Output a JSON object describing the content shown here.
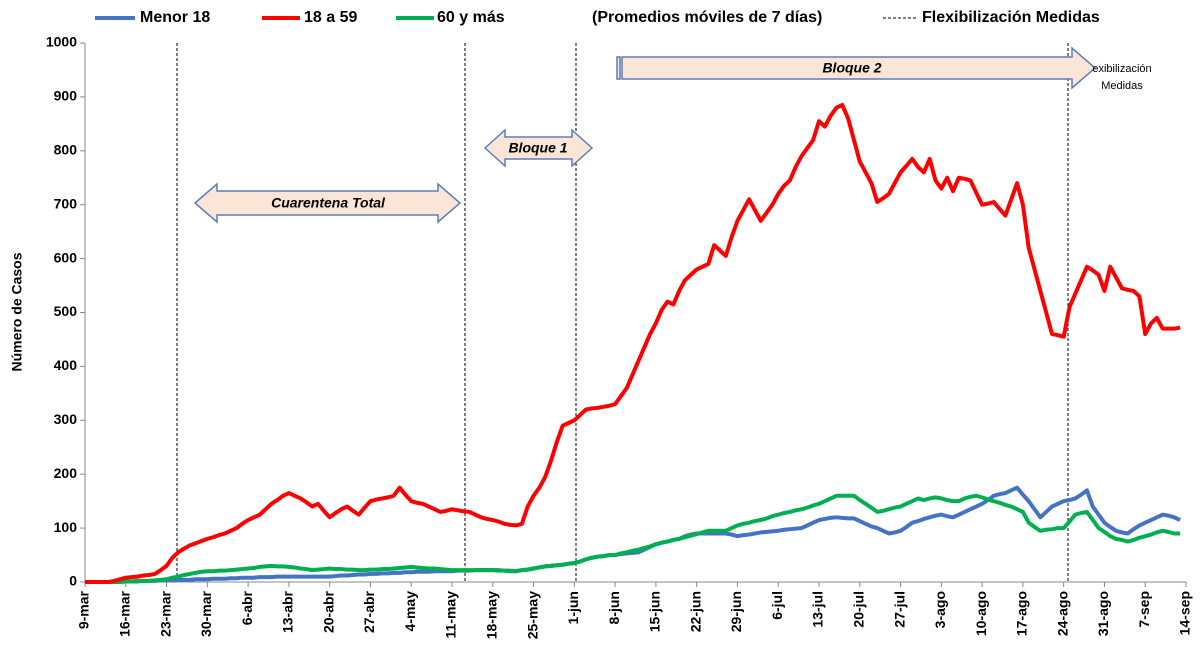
{
  "chart_data": {
    "type": "line",
    "subtitle": "(Promedios móviles de 7 días)",
    "y_label": "Número de Casos",
    "event_legend": "Flexibilización Medidas",
    "annotations": [
      "Cuarentena Total",
      "Bloque 1",
      "Bloque 2",
      "exibilización",
      "Medidas"
    ],
    "ylim": [
      0,
      1000
    ],
    "yticks": [
      0,
      100,
      200,
      300,
      400,
      500,
      600,
      700,
      800,
      900,
      1000
    ],
    "categories": [
      "9-mar",
      null,
      null,
      null,
      null,
      null,
      null,
      "16-mar",
      null,
      null,
      null,
      null,
      null,
      null,
      "23-mar",
      null,
      null,
      null,
      null,
      null,
      null,
      "30-mar",
      null,
      null,
      null,
      null,
      null,
      null,
      "6-abr",
      null,
      null,
      null,
      null,
      null,
      null,
      "13-abr",
      null,
      null,
      null,
      null,
      null,
      null,
      "20-abr",
      null,
      null,
      null,
      null,
      null,
      null,
      "27-abr",
      null,
      null,
      null,
      null,
      null,
      null,
      "4-may",
      null,
      null,
      null,
      null,
      null,
      null,
      "11-may",
      null,
      null,
      null,
      null,
      null,
      null,
      "18-may",
      null,
      null,
      null,
      null,
      null,
      null,
      "25-may",
      null,
      null,
      null,
      null,
      null,
      null,
      "1-jun",
      null,
      null,
      null,
      null,
      null,
      null,
      "8-jun",
      null,
      null,
      null,
      null,
      null,
      null,
      "15-jun",
      null,
      null,
      null,
      null,
      null,
      null,
      "22-jun",
      null,
      null,
      null,
      null,
      null,
      null,
      "29-jun",
      null,
      null,
      null,
      null,
      null,
      null,
      "6-jul",
      null,
      null,
      null,
      null,
      null,
      null,
      "13-jul",
      null,
      null,
      null,
      null,
      null,
      null,
      "20-jul",
      null,
      null,
      null,
      null,
      null,
      null,
      "27-jul",
      null,
      null,
      null,
      null,
      null,
      null,
      "3-ago",
      null,
      null,
      null,
      null,
      null,
      null,
      "10-ago",
      null,
      null,
      null,
      null,
      null,
      null,
      "17-ago",
      null,
      null,
      null,
      null,
      null,
      null,
      "24-ago",
      null,
      null,
      null,
      null,
      null,
      null,
      "31-ago",
      null,
      null,
      null,
      null,
      null,
      null,
      "7-sep",
      null,
      null,
      null,
      null,
      null,
      null,
      "14-sep"
    ],
    "series": [
      {
        "name": "Menor 18",
        "color": "#4472c4",
        "values": [
          0,
          0,
          0,
          0,
          0,
          0,
          1,
          1,
          1,
          2,
          2,
          2,
          2,
          3,
          3,
          3,
          4,
          4,
          4,
          5,
          5,
          5,
          6,
          6,
          6,
          7,
          7,
          8,
          8,
          8,
          9,
          9,
          9,
          10,
          10,
          10,
          10,
          10,
          10,
          10,
          10,
          10,
          10,
          11,
          12,
          12,
          13,
          14,
          14,
          15,
          15,
          16,
          16,
          17,
          17,
          18,
          18,
          19,
          19,
          19,
          20,
          20,
          20,
          20,
          21,
          21,
          21,
          22,
          22,
          22,
          22,
          22,
          21,
          21,
          20,
          22,
          23,
          25,
          27,
          29,
          30,
          31,
          32,
          34,
          35,
          38,
          42,
          45,
          47,
          48,
          50,
          50,
          52,
          53,
          54,
          55,
          60,
          65,
          70,
          73,
          75,
          78,
          80,
          85,
          88,
          90,
          90,
          90,
          90,
          90,
          90,
          88,
          85,
          87,
          88,
          90,
          92,
          93,
          94,
          95,
          97,
          98,
          99,
          100,
          105,
          110,
          115,
          117,
          119,
          120,
          119,
          118,
          118,
          113,
          108,
          103,
          100,
          95,
          90,
          92,
          95,
          102,
          110,
          113,
          117,
          120,
          123,
          125,
          122,
          120,
          125,
          130,
          135,
          140,
          145,
          152,
          160,
          163,
          165,
          170,
          175,
          162,
          150,
          135,
          120,
          130,
          140,
          145,
          150,
          152,
          155,
          162,
          170,
          140,
          125,
          110,
          102,
          95,
          92,
          90,
          98,
          105,
          110,
          115,
          120,
          125,
          123,
          120,
          115,
          null
        ]
      },
      {
        "name": "18 a 59",
        "color": "#ff0000",
        "values": [
          0,
          0,
          0,
          0,
          0,
          2,
          5,
          8,
          9,
          10,
          12,
          13,
          15,
          22,
          30,
          45,
          55,
          62,
          68,
          72,
          76,
          80,
          83,
          87,
          90,
          95,
          100,
          108,
          115,
          120,
          125,
          135,
          145,
          152,
          160,
          165,
          160,
          155,
          148,
          140,
          145,
          132,
          120,
          128,
          135,
          140,
          132,
          125,
          138,
          150,
          153,
          155,
          157,
          160,
          175,
          162,
          150,
          147,
          145,
          140,
          135,
          130,
          132,
          135,
          133,
          131,
          130,
          125,
          120,
          117,
          115,
          112,
          108,
          106,
          105,
          108,
          140,
          160,
          175,
          195,
          225,
          260,
          290,
          295,
          300,
          310,
          320,
          322,
          323,
          325,
          327,
          330,
          345,
          360,
          385,
          410,
          435,
          460,
          480,
          505,
          520,
          515,
          540,
          560,
          570,
          580,
          585,
          590,
          625,
          615,
          605,
          640,
          670,
          690,
          710,
          690,
          670,
          685,
          700,
          720,
          735,
          745,
          770,
          790,
          805,
          820,
          855,
          845,
          865,
          880,
          885,
          860,
          820,
          780,
          760,
          740,
          705,
          712,
          720,
          740,
          760,
          772,
          785,
          770,
          760,
          785,
          745,
          730,
          750,
          725,
          750,
          748,
          745,
          722,
          700,
          702,
          705,
          692,
          680,
          710,
          740,
          700,
          620,
          580,
          540,
          500,
          460,
          458,
          455,
          510,
          535,
          560,
          585,
          578,
          570,
          540,
          585,
          565,
          545,
          542,
          540,
          530,
          460,
          480,
          490,
          470,
          470,
          470,
          472,
          null
        ]
      },
      {
        "name": "60 y más",
        "color": "#00b050",
        "values": [
          0,
          0,
          0,
          0,
          0,
          0,
          0,
          1,
          1,
          1,
          2,
          2,
          3,
          4,
          5,
          8,
          10,
          13,
          15,
          17,
          19,
          20,
          20,
          21,
          21,
          22,
          23,
          24,
          25,
          26,
          28,
          29,
          30,
          29,
          29,
          28,
          27,
          25,
          24,
          22,
          23,
          24,
          25,
          24,
          24,
          23,
          23,
          22,
          22,
          23,
          23,
          24,
          24,
          25,
          26,
          27,
          28,
          27,
          26,
          25,
          25,
          24,
          23,
          22,
          22,
          22,
          22,
          22,
          22,
          22,
          22,
          21,
          21,
          20,
          20,
          22,
          23,
          25,
          27,
          29,
          30,
          31,
          32,
          34,
          35,
          38,
          42,
          45,
          47,
          48,
          50,
          50,
          53,
          55,
          58,
          60,
          63,
          66,
          70,
          73,
          75,
          78,
          80,
          83,
          86,
          89,
          92,
          95,
          95,
          95,
          95,
          100,
          105,
          108,
          110,
          113,
          115,
          118,
          122,
          125,
          128,
          130,
          133,
          135,
          138,
          142,
          145,
          150,
          155,
          160,
          160,
          160,
          160,
          152,
          145,
          138,
          130,
          132,
          135,
          138,
          140,
          145,
          150,
          155,
          152,
          155,
          157,
          155,
          152,
          150,
          150,
          155,
          158,
          160,
          157,
          153,
          150,
          147,
          143,
          140,
          135,
          130,
          110,
          102,
          95,
          97,
          98,
          100,
          100,
          112,
          125,
          128,
          130,
          115,
          100,
          93,
          85,
          80,
          78,
          75,
          78,
          82,
          85,
          88,
          92,
          95,
          93,
          90,
          90,
          null
        ]
      }
    ]
  }
}
